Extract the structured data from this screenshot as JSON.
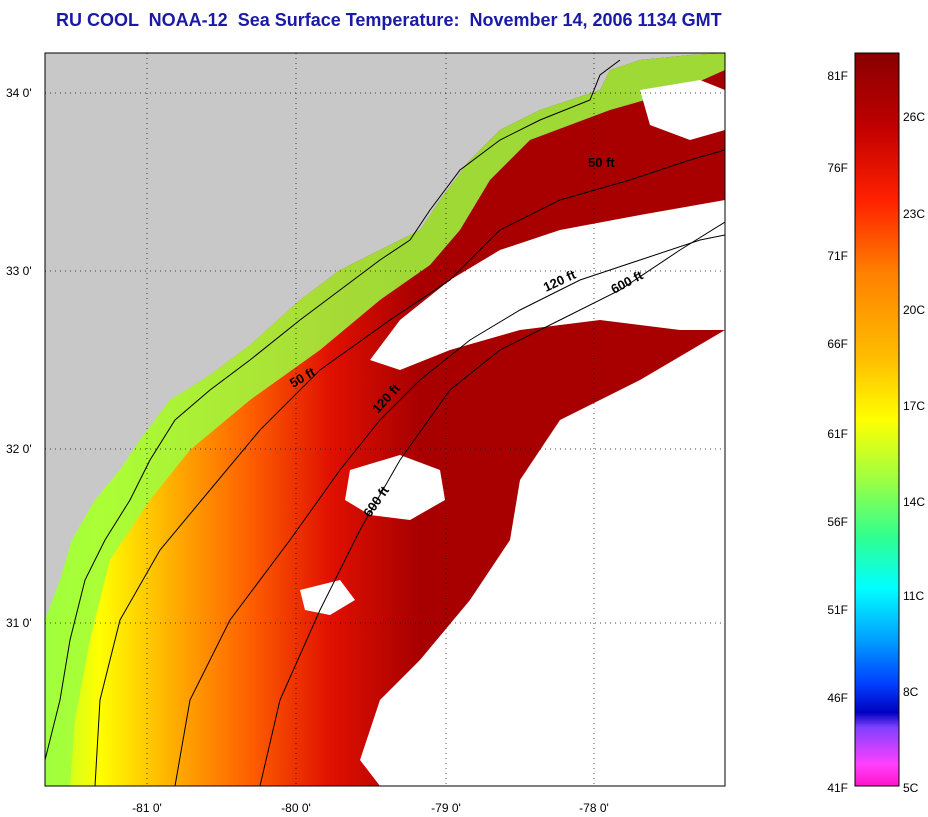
{
  "title": "RU COOL  NOAA-12  Sea Surface Temperature:  November 14, 2006 1134 GMT",
  "map": {
    "lon_ticks": [
      "-81 0'",
      "-80 0'",
      "-79 0'",
      "-78 0'"
    ],
    "lat_ticks": [
      "34 0'",
      "33 0'",
      "32 0'",
      "31 0'"
    ],
    "contour_labels": [
      "50 ft",
      "120 ft",
      "600 ft",
      "50 ft",
      "120 ft",
      "600 ft"
    ]
  },
  "colorbar": {
    "fahrenheit_labels": [
      "81F",
      "76F",
      "71F",
      "66F",
      "61F",
      "56F",
      "51F",
      "46F",
      "41F"
    ],
    "celsius_labels": [
      "26C",
      "23C",
      "20C",
      "17C",
      "14C",
      "11C",
      "8C",
      "5C"
    ],
    "range_f": [
      41,
      81
    ],
    "range_c": [
      5,
      27.2
    ]
  },
  "colors": {
    "title": "#1a1aa6",
    "land": "#c8c8c8",
    "cloud": "#ffffff",
    "sst_warm": "#a80000",
    "sst_cool": "#ff14c8"
  }
}
